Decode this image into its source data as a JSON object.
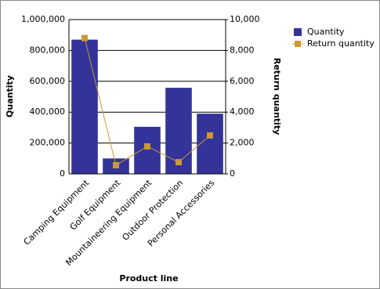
{
  "chart_data": {
    "type": "bar",
    "categories": [
      "Camping Equipment",
      "Golf Equipment",
      "Mountaineering Equipment",
      "Outdoor Protection",
      "Personal Accessories"
    ],
    "series": [
      {
        "name": "Quantity",
        "type": "bar",
        "color": "#333399",
        "values": [
          870000,
          100000,
          305000,
          558000,
          390000
        ]
      },
      {
        "name": "Return quantity",
        "type": "line",
        "axis": "y2",
        "color": "#cc9933",
        "values": [
          8800,
          560,
          1780,
          760,
          2490
        ]
      }
    ],
    "ylabel": "Quantity",
    "y2label": "Return quantity",
    "xlabel": "Product line",
    "ylim": [
      0,
      1000000
    ],
    "yticks": [
      0,
      {
        "value": 200000,
        "label": "200,000"
      },
      {
        "value": 400000,
        "label": "400,000"
      },
      {
        "value": 600000,
        "label": "600,000"
      },
      {
        "value": 800000,
        "label": "800,000"
      },
      {
        "value": 1000000,
        "label": "1,000,000"
      }
    ],
    "y2lim": [
      0,
      10000
    ],
    "y2ticks": [
      0,
      {
        "value": 2000,
        "label": "2,000"
      },
      {
        "value": 4000,
        "label": "4,000"
      },
      {
        "value": 6000,
        "label": "6,000"
      },
      {
        "value": 8000,
        "label": "8,000"
      },
      {
        "value": 10000,
        "label": "10,000"
      }
    ],
    "grid": true,
    "legend": "right"
  }
}
